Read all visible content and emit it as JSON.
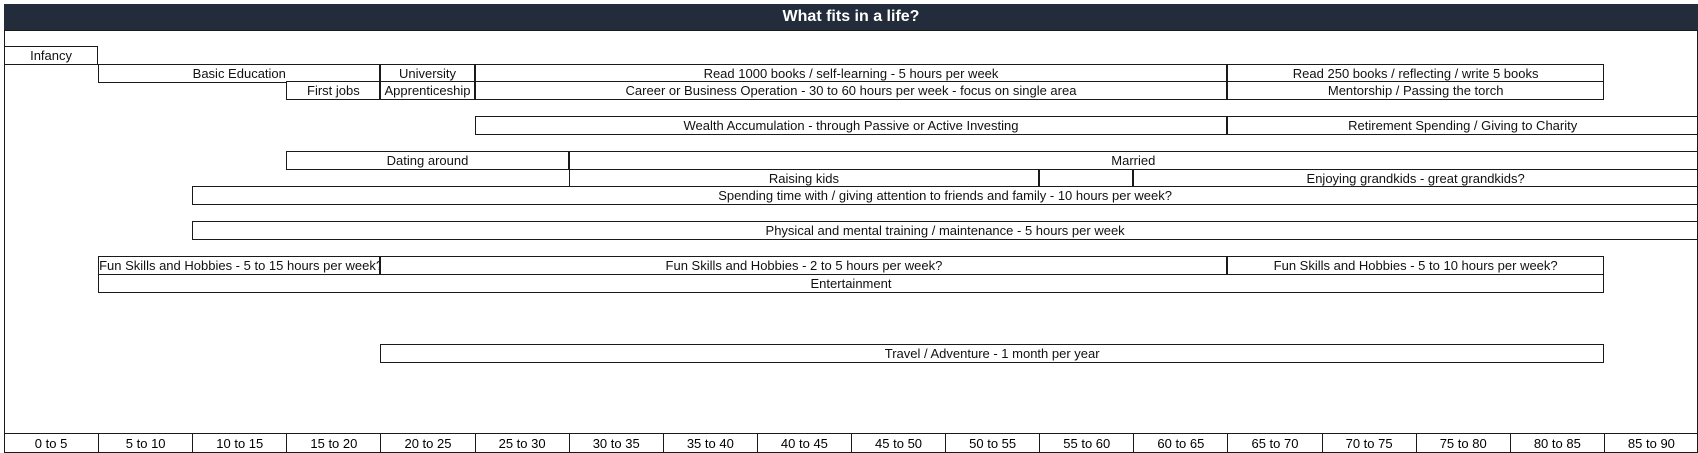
{
  "title": "What fits in a life?",
  "axis": {
    "labels": [
      "0 to 5",
      "5 to 10",
      "10 to 15",
      "15 to 20",
      "20 to 25",
      "25 to 30",
      "30 to 35",
      "35 to 40",
      "40 to 45",
      "45 to 50",
      "50 to 55",
      "55 to 60",
      "60 to 65",
      "65 to 70",
      "70 to 75",
      "75 to 80",
      "80 to 85",
      "85 to 90"
    ]
  },
  "activities": [
    {
      "label": "Infancy",
      "start_age": 0,
      "end_age": 5,
      "row": 0
    },
    {
      "label": "Basic Education",
      "start_age": 5,
      "end_age": 20,
      "row": 1
    },
    {
      "label": "University",
      "start_age": 20,
      "end_age": 25,
      "row": 1
    },
    {
      "label": "Read 1000 books / self-learning - 5 hours per week",
      "start_age": 25,
      "end_age": 65,
      "row": 1
    },
    {
      "label": "Read 250 books / reflecting / write 5 books",
      "start_age": 65,
      "end_age": 85,
      "row": 1
    },
    {
      "label": "First jobs",
      "start_age": 15,
      "end_age": 20,
      "row": 2
    },
    {
      "label": "Apprenticeship",
      "start_age": 20,
      "end_age": 25,
      "row": 2
    },
    {
      "label": "Career or Business Operation - 30 to 60 hours per week - focus on single area",
      "start_age": 25,
      "end_age": 65,
      "row": 2
    },
    {
      "label": "Mentorship / Passing the torch",
      "start_age": 65,
      "end_age": 85,
      "row": 2
    },
    {
      "label": "Wealth Accumulation - through Passive or Active Investing",
      "start_age": 25,
      "end_age": 65,
      "row": 4
    },
    {
      "label": "Retirement Spending / Giving to Charity",
      "start_age": 65,
      "end_age": 90,
      "row": 4
    },
    {
      "label": "Dating around",
      "start_age": 15,
      "end_age": 30,
      "row": 6
    },
    {
      "label": "Married",
      "start_age": 30,
      "end_age": 90,
      "row": 6
    },
    {
      "label": "Raising kids",
      "start_age": 30,
      "end_age": 55,
      "row": 7
    },
    {
      "label": "",
      "start_age": 55,
      "end_age": 60,
      "row": 7
    },
    {
      "label": "Enjoying grandkids - great grandkids?",
      "start_age": 60,
      "end_age": 90,
      "row": 7
    },
    {
      "label": "Spending time with / giving attention to friends and family - 10 hours per week?",
      "start_age": 10,
      "end_age": 90,
      "row": 8
    },
    {
      "label": "Physical and mental training / maintenance - 5 hours per week",
      "start_age": 10,
      "end_age": 90,
      "row": 10
    },
    {
      "label": "Fun Skills and Hobbies - 5 to 15 hours per week?",
      "start_age": 5,
      "end_age": 20,
      "row": 12
    },
    {
      "label": "Fun Skills and Hobbies - 2 to 5 hours per week?",
      "start_age": 20,
      "end_age": 65,
      "row": 12
    },
    {
      "label": "Fun Skills and Hobbies - 5 to 10 hours per week?",
      "start_age": 65,
      "end_age": 85,
      "row": 12
    },
    {
      "label": "Entertainment",
      "start_age": 5,
      "end_age": 85,
      "row": 13
    },
    {
      "label": "Travel / Adventure - 1 month per year",
      "start_age": 20,
      "end_age": 85,
      "row": 17
    }
  ]
}
